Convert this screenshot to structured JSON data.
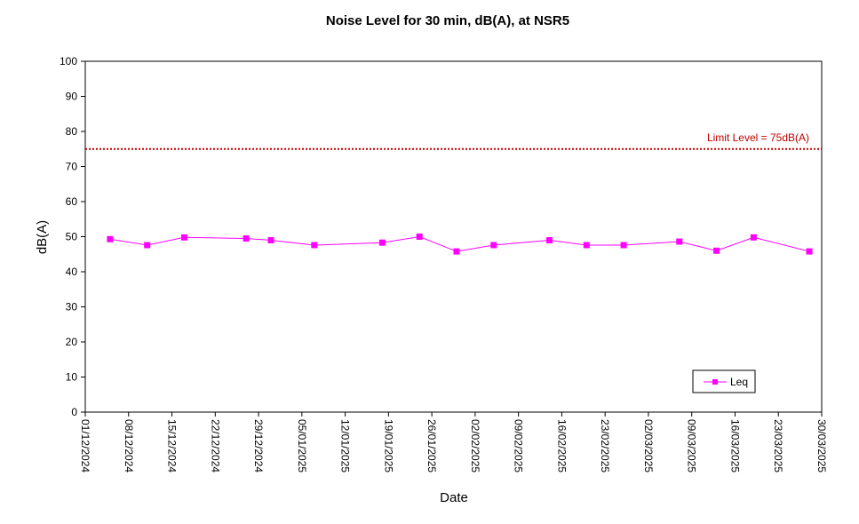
{
  "chart_data": {
    "type": "line",
    "title": "Noise Level for 30 min, dB(A), at NSR5",
    "xlabel": "Date",
    "ylabel": "dB(A)",
    "ylim": [
      0,
      100
    ],
    "yticks": [
      0,
      10,
      20,
      30,
      40,
      50,
      60,
      70,
      80,
      90,
      100
    ],
    "xlim": [
      "2024-12-01",
      "2025-03-30"
    ],
    "xtick_labels": [
      "01/12/2024",
      "08/12/2024",
      "15/12/2024",
      "22/12/2024",
      "29/12/2024",
      "05/01/2025",
      "12/01/2025",
      "19/01/2025",
      "26/01/2025",
      "02/02/2025",
      "09/02/2025",
      "16/02/2025",
      "23/02/2025",
      "02/03/2025",
      "09/03/2025",
      "16/03/2025",
      "23/03/2025",
      "30/03/2025"
    ],
    "series": [
      {
        "name": "Leq",
        "color": "#ff00ff",
        "points": [
          {
            "date": "2024-12-05",
            "value": 49.3
          },
          {
            "date": "2024-12-11",
            "value": 47.6
          },
          {
            "date": "2024-12-17",
            "value": 49.8
          },
          {
            "date": "2024-12-27",
            "value": 49.5
          },
          {
            "date": "2024-12-31",
            "value": 49.0
          },
          {
            "date": "2025-01-07",
            "value": 47.6
          },
          {
            "date": "2025-01-18",
            "value": 48.3
          },
          {
            "date": "2025-01-24",
            "value": 50.0
          },
          {
            "date": "2025-01-30",
            "value": 45.8
          },
          {
            "date": "2025-02-05",
            "value": 47.6
          },
          {
            "date": "2025-02-14",
            "value": 49.0
          },
          {
            "date": "2025-02-20",
            "value": 47.6
          },
          {
            "date": "2025-02-26",
            "value": 47.6
          },
          {
            "date": "2025-03-07",
            "value": 48.6
          },
          {
            "date": "2025-03-13",
            "value": 46.0
          },
          {
            "date": "2025-03-19",
            "value": 49.8
          },
          {
            "date": "2025-03-28",
            "value": 45.8
          }
        ]
      }
    ],
    "limit_line": {
      "value": 75,
      "label": "Limit Level = 75dB(A)",
      "color": "#c00000"
    },
    "legend": {
      "placement": "bottom-right",
      "entries": [
        "Leq"
      ]
    },
    "grid": false
  }
}
